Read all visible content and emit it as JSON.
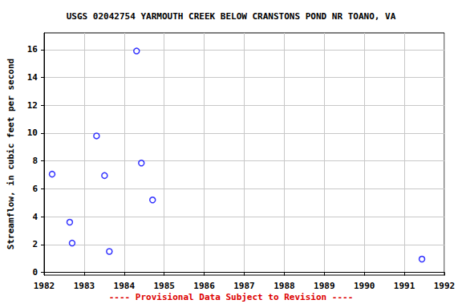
{
  "chart_data": {
    "type": "scatter",
    "title": "USGS 02042754 YARMOUTH CREEK BELOW CRANSTONS POND NR TOANO, VA",
    "y_label": "Streamflow, in cubic feet per second",
    "footnote": "---- Provisional Data Subject to Revision ----",
    "x": [
      1982.2,
      1982.64,
      1982.7,
      1983.31,
      1983.51,
      1983.63,
      1984.31,
      1984.43,
      1984.71,
      1991.44
    ],
    "values": [
      7.05,
      3.6,
      2.1,
      9.8,
      6.95,
      1.5,
      15.9,
      7.85,
      5.2,
      0.95
    ],
    "color": "#0000ff",
    "marker": "circle",
    "xlim": [
      1982,
      1992
    ],
    "xticks": [
      1982,
      1983,
      1984,
      1985,
      1986,
      1987,
      1988,
      1989,
      1990,
      1991,
      1992
    ],
    "ylim": [
      -0.2,
      17.2
    ],
    "yticks": [
      0,
      2,
      4,
      6,
      8,
      10,
      12,
      14,
      16
    ],
    "grid": true
  }
}
